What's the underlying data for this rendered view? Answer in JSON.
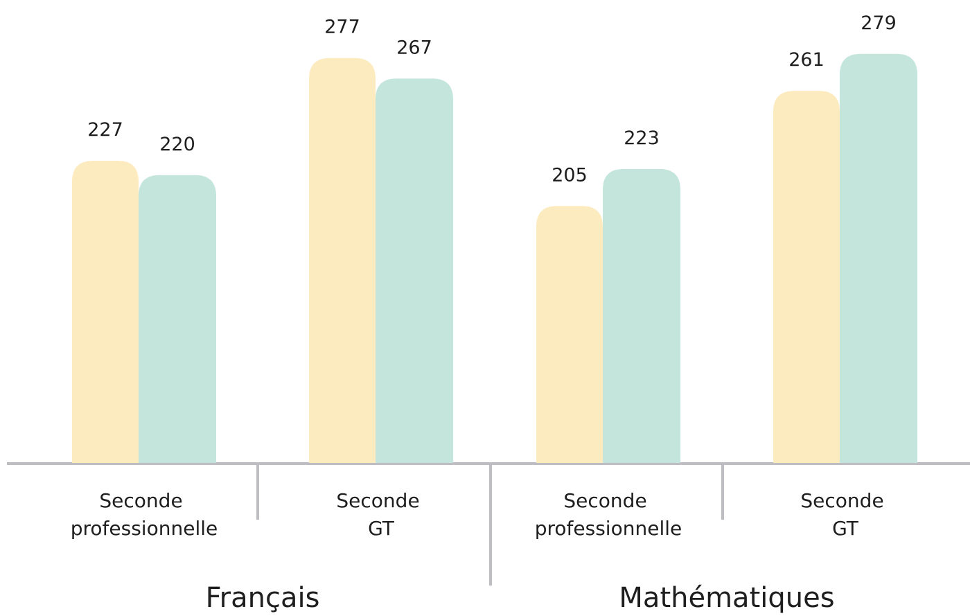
{
  "chart_data": {
    "type": "bar",
    "categories": [
      "Seconde professionnelle",
      "Seconde GT",
      "Seconde professionnelle",
      "Seconde GT"
    ],
    "groups": [
      "Français",
      "Mathématiques"
    ],
    "series": [
      {
        "color": "#fdebc0",
        "values": [
          227,
          277,
          205,
          261
        ]
      },
      {
        "color": "#c3e5dc",
        "values": [
          220,
          267,
          223,
          279
        ]
      }
    ],
    "ylim": [
      80,
      285
    ]
  }
}
